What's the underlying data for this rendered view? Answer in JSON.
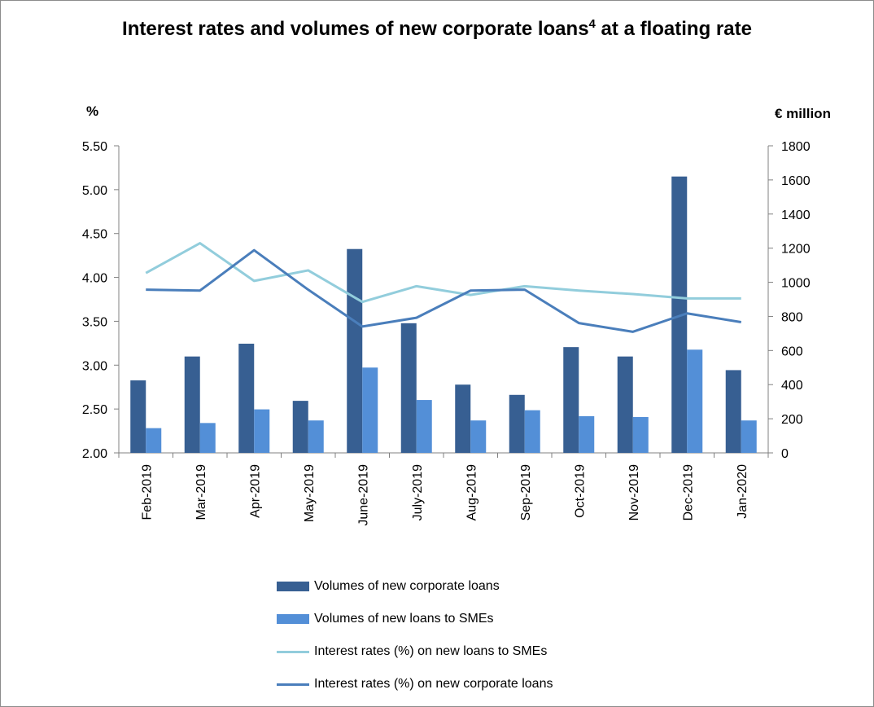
{
  "title": "Interest rates and volumes of new corporate loans",
  "title_sup": "4",
  "chart_data": {
    "type": "bar",
    "title": "Interest rates and volumes of new corporate loans4 at a floating rate",
    "y_left_label": "%",
    "y_right_label": "€ million",
    "y_left_lim": [
      2.0,
      5.5
    ],
    "y_right_lim": [
      0,
      1800
    ],
    "y_left_ticks": [
      "2.00",
      "2.50",
      "3.00",
      "3.50",
      "4.00",
      "4.50",
      "5.00",
      "5.50"
    ],
    "y_right_ticks": [
      "0",
      "200",
      "400",
      "600",
      "800",
      "1000",
      "1200",
      "1400",
      "1600",
      "1800"
    ],
    "categories": [
      "Feb-2019",
      "Mar-2019",
      "Apr-2019",
      "May-2019",
      "June-2019",
      "July-2019",
      "Aug-2019",
      "Sep-2019",
      "Oct-2019",
      "Nov-2019",
      "Dec-2019",
      "Jan-2020"
    ],
    "series": [
      {
        "name": "Volumes of new corporate loans",
        "kind": "bar",
        "axis": "right",
        "color": "#375f92",
        "values": [
          425,
          565,
          640,
          305,
          1195,
          760,
          400,
          340,
          620,
          565,
          1620,
          485
        ]
      },
      {
        "name": "Volumes of new loans to SMEs",
        "kind": "bar",
        "axis": "right",
        "color": "#538fd7",
        "values": [
          145,
          175,
          255,
          190,
          500,
          310,
          190,
          250,
          215,
          210,
          605,
          190
        ]
      },
      {
        "name": "Interest rates (%) on new loans to SMEs",
        "kind": "line",
        "axis": "left",
        "color": "#92cddc",
        "values": [
          4.05,
          4.39,
          3.96,
          4.08,
          3.72,
          3.9,
          3.8,
          3.9,
          3.85,
          3.81,
          3.76,
          3.76
        ]
      },
      {
        "name": "Interest rates (%) on new corporate loans",
        "kind": "line",
        "axis": "left",
        "color": "#4a7ebb",
        "values": [
          3.86,
          3.85,
          4.31,
          3.86,
          3.44,
          3.54,
          3.85,
          3.86,
          3.48,
          3.38,
          3.59,
          3.49
        ]
      }
    ],
    "grid": false,
    "legend_position": "bottom"
  }
}
